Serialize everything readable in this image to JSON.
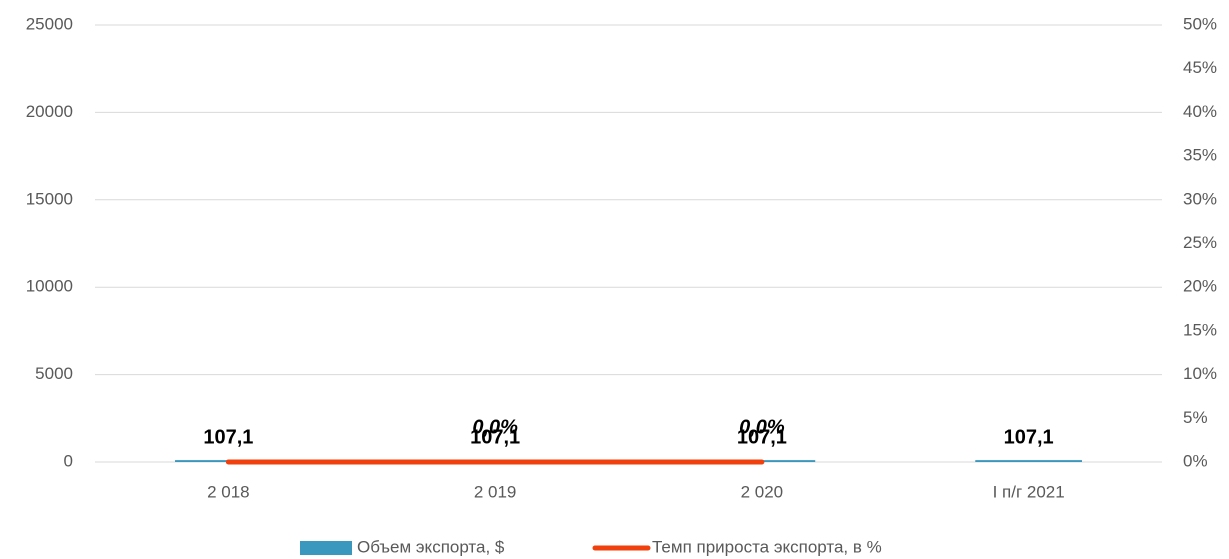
{
  "chart_data": {
    "type": "bar",
    "categories": [
      "2 018",
      "2 019",
      "2 020",
      "I п/г 2021"
    ],
    "series": [
      {
        "name": "Объем экспорта, $",
        "type": "bar",
        "color": "#3a97bd",
        "values": [
          107.1,
          107.1,
          107.1,
          107.1
        ],
        "value_labels": [
          "107,1",
          "107,1",
          "107,1",
          "107,1"
        ]
      },
      {
        "name": "Темп прироста экспорта, в %",
        "type": "line",
        "axis": "y2",
        "color": "#f0400d",
        "values": [
          0,
          0,
          0,
          null
        ],
        "value_labels": [
          null,
          "0,0%",
          "0,0%",
          null
        ]
      }
    ],
    "ylim": [
      0,
      25000
    ],
    "yticks": [
      0,
      5000,
      10000,
      15000,
      20000,
      25000
    ],
    "y2lim": [
      0,
      50
    ],
    "y2ticks": [
      {
        "value": 0,
        "label": "0%"
      },
      {
        "value": 5,
        "label": "5%"
      },
      {
        "value": 10,
        "label": "10%"
      },
      {
        "value": 15,
        "label": "15%"
      },
      {
        "value": 20,
        "label": "20%"
      },
      {
        "value": 25,
        "label": "25%"
      },
      {
        "value": 30,
        "label": "30%"
      },
      {
        "value": 35,
        "label": "35%"
      },
      {
        "value": 40,
        "label": "40%"
      },
      {
        "value": 45,
        "label": "45%"
      },
      {
        "value": 50,
        "label": "50%"
      }
    ],
    "grid": true,
    "legend": "bottom"
  }
}
